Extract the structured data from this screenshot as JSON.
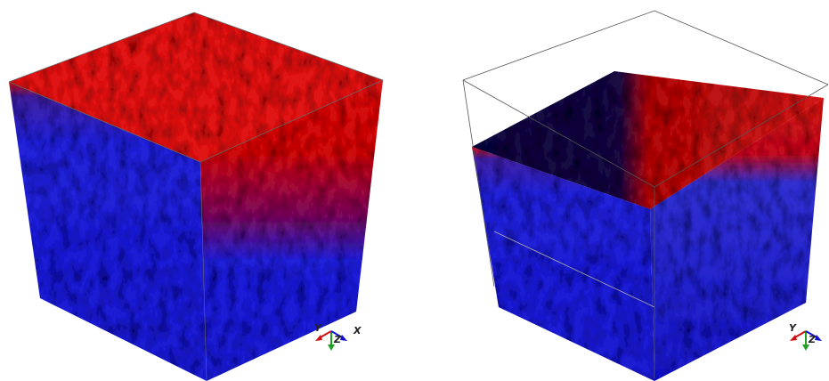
{
  "panels": [
    {
      "axes": {
        "y": "Y",
        "z": "Z",
        "x": "X"
      }
    },
    {
      "axes": {
        "y": "Y",
        "z": "Z"
      }
    }
  ]
}
